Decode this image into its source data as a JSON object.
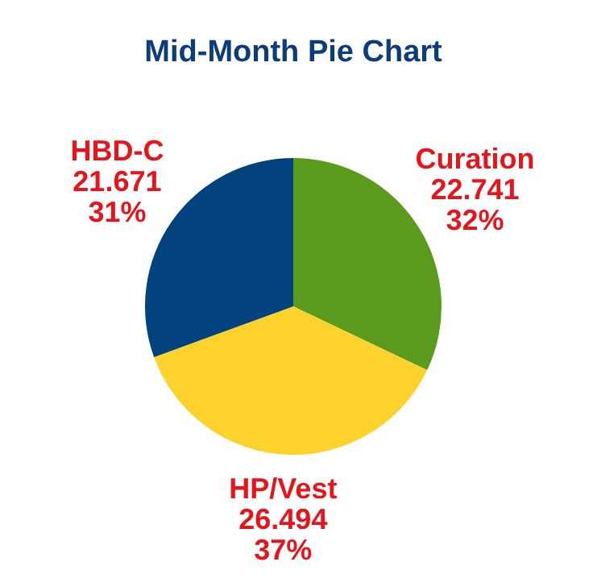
{
  "chart_data": {
    "type": "pie",
    "title": "Mid-Month Pie Chart",
    "categories": [
      "Curation",
      "HP/Vest",
      "HBD-C"
    ],
    "values": [
      22.741,
      26.494,
      21.671
    ],
    "colors": [
      "#5a9a1c",
      "#fdd22c",
      "#02427f"
    ],
    "value_labels": [
      "22.741\n32%",
      "26.494\n37%",
      "21.671\n31%"
    ],
    "legend": false
  }
}
